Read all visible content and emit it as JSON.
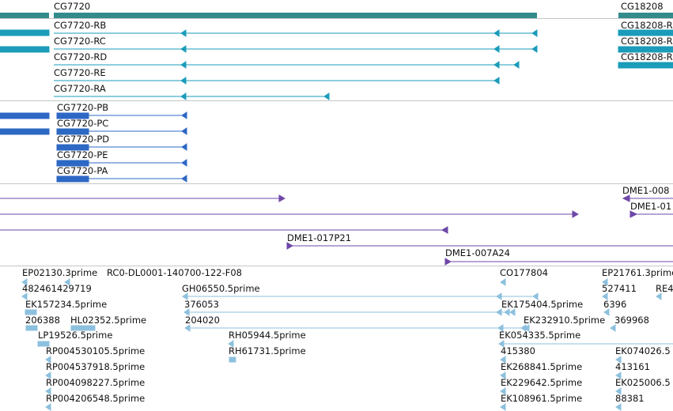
{
  "colors": {
    "gene": "#338b8b",
    "transcript": "#1a9cba",
    "protein": "#2d68c4",
    "clone": "#6f47a8",
    "est": "#8cc0de",
    "separator": "#c6c6c6",
    "text": "#111111"
  },
  "tracks": {
    "genes": {
      "features": [
        {
          "label": "CG7720"
        },
        {
          "label": "CG18208"
        }
      ]
    },
    "transcripts": {
      "features": [
        {
          "label": "CG7720-RB"
        },
        {
          "label": "CG7720-RC"
        },
        {
          "label": "CG7720-RD"
        },
        {
          "label": "CG7720-RE"
        },
        {
          "label": "CG7720-RA"
        },
        {
          "label": "CG18208-R"
        },
        {
          "label": "CG18208-R"
        },
        {
          "label": "CG18208-R"
        }
      ]
    },
    "proteins": {
      "features": [
        {
          "label": "CG7720-PB"
        },
        {
          "label": "CG7720-PC"
        },
        {
          "label": "CG7720-PD"
        },
        {
          "label": "CG7720-PE"
        },
        {
          "label": "CG7720-PA"
        }
      ]
    },
    "clones": {
      "features": [
        {
          "label": "DME1-008"
        },
        {
          "label": "DME1-01"
        },
        {
          "label": "DME1-017P21"
        },
        {
          "label": "DME1-007A24"
        }
      ]
    },
    "ests": {
      "features": [
        {
          "label": "EP02130.3prime"
        },
        {
          "label": "RC0-DL0001-140700-122-F08"
        },
        {
          "label": "CO177804"
        },
        {
          "label": "EP21761.3prime"
        },
        {
          "label": "482461429719"
        },
        {
          "label": "GH06550.5prime"
        },
        {
          "label": "527411"
        },
        {
          "label": "RE4"
        },
        {
          "label": "EK157234.5prime"
        },
        {
          "label": "376053"
        },
        {
          "label": "EK175404.5prime"
        },
        {
          "label": "6396"
        },
        {
          "label": "206388"
        },
        {
          "label": "HL02352.5prime"
        },
        {
          "label": "204020"
        },
        {
          "label": "EK232910.5prime"
        },
        {
          "label": "369968"
        },
        {
          "label": "LP19526.5prime"
        },
        {
          "label": "RH05944.5prime"
        },
        {
          "label": "EK054335.5prime"
        },
        {
          "label": "RP004530105.5prime"
        },
        {
          "label": "RH61731.5prime"
        },
        {
          "label": "415380"
        },
        {
          "label": "EK074026.5"
        },
        {
          "label": "RP004537918.5prime"
        },
        {
          "label": "EK268841.5prime"
        },
        {
          "label": "413161"
        },
        {
          "label": "RP004098227.5prime"
        },
        {
          "label": "EK229642.5prime"
        },
        {
          "label": "EK025006.5"
        },
        {
          "label": "RP004206548.5prime"
        },
        {
          "label": "EK108961.5prime"
        },
        {
          "label": "88381"
        }
      ]
    }
  }
}
